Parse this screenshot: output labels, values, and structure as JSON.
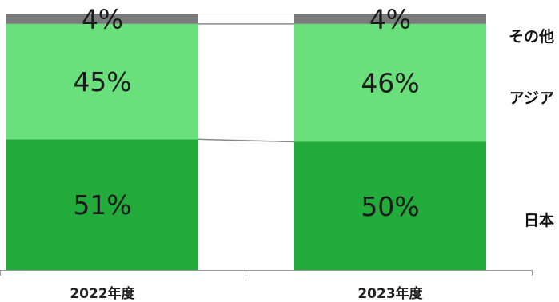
{
  "chart_data": {
    "type": "bar",
    "stacked": true,
    "normalized": true,
    "categories": [
      "2022年度",
      "2023年度"
    ],
    "series": [
      {
        "name": "日本",
        "values": [
          51,
          50
        ],
        "labels": [
          "51%",
          "50%"
        ],
        "color": "#22aa3a"
      },
      {
        "name": "アジア",
        "values": [
          45,
          46
        ],
        "labels": [
          "45%",
          "46%"
        ],
        "color": "#6ae07c"
      },
      {
        "name": "その他",
        "values": [
          4,
          4
        ],
        "labels": [
          "4%",
          "4%"
        ],
        "color": "#7a7a7a"
      }
    ],
    "ylim": [
      0,
      100
    ],
    "connector_lines": true,
    "legend": "right",
    "grid": false
  }
}
